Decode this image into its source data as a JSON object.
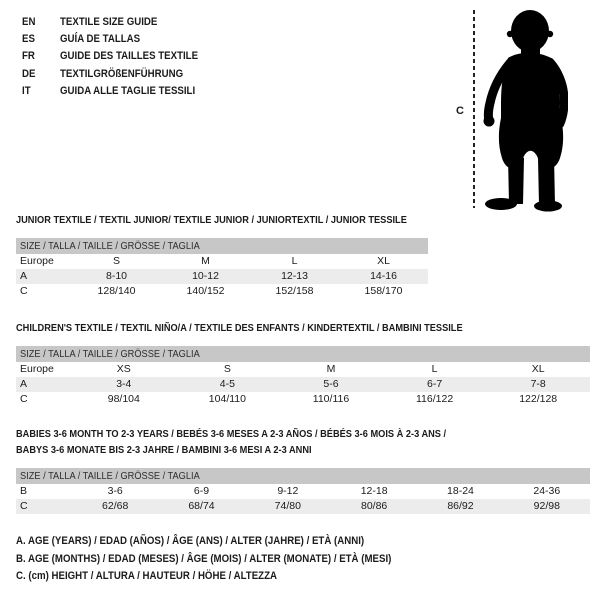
{
  "page": {
    "background": "#ffffff",
    "text_color": "#1b1b1b",
    "header_bar_color": "#c7c7c7",
    "alt_row_color": "#ececec"
  },
  "languages": [
    {
      "code": "EN",
      "title": "TEXTILE SIZE GUIDE"
    },
    {
      "code": "ES",
      "title": "GUÍA DE TALLAS"
    },
    {
      "code": "FR",
      "title": "GUIDE DES TAILLES TEXTILE"
    },
    {
      "code": "DE",
      "title": "TEXTILGRÖßENFÜHRUNG"
    },
    {
      "code": "IT",
      "title": "GUIDA ALLE TAGLIE TESSILI"
    }
  ],
  "figure": {
    "icon": "baby-toddler-silhouette",
    "measure_label": "C"
  },
  "sections": [
    {
      "title_lines": [
        "JUNIOR TEXTILE / TEXTIL JUNIOR/ TEXTILE JUNIOR / JUNIORTEXTIL / JUNIOR TESSILE"
      ],
      "size_header": "SIZE / TALLA / TAILLE / GRÖSSE / TAGLIA",
      "rows": [
        {
          "label": "Europe",
          "cells": [
            "S",
            "M",
            "L",
            "XL"
          ]
        },
        {
          "label": "A",
          "cells": [
            "8-10",
            "10-12",
            "12-13",
            "14-16"
          ]
        },
        {
          "label": "C",
          "cells": [
            "128/140",
            "140/152",
            "152/158",
            "158/170"
          ]
        }
      ]
    },
    {
      "title_lines": [
        "CHILDREN'S TEXTILE / TEXTIL NIÑO/A / TEXTILE DES ENFANTS / KINDERTEXTIL / BAMBINI TESSILE"
      ],
      "size_header": "SIZE / TALLA / TAILLE / GRÖSSE / TAGLIA",
      "rows": [
        {
          "label": "Europe",
          "cells": [
            "XS",
            "S",
            "M",
            "L",
            "XL"
          ]
        },
        {
          "label": "A",
          "cells": [
            "3-4",
            "4-5",
            "5-6",
            "6-7",
            "7-8"
          ]
        },
        {
          "label": "C",
          "cells": [
            "98/104",
            "104/110",
            "110/116",
            "116/122",
            "122/128"
          ]
        }
      ]
    },
    {
      "title_lines": [
        "BABIES 3-6 MONTH TO 2-3 YEARS / BEBÉS 3-6 MESES A 2-3 AÑOS / BÉBÉS 3-6 MOIS À 2-3 ANS /",
        "BABYS 3-6 MONATE BIS 2-3 JAHRE / BAMBINI 3-6 MESI A 2-3 ANNI"
      ],
      "size_header": "SIZE / TALLA / TAILLE / GRÖSSE / TAGLIA",
      "rows": [
        {
          "label": "B",
          "cells": [
            "3-6",
            "6-9",
            "9-12",
            "12-18",
            "18-24",
            "24-36"
          ]
        },
        {
          "label": "C",
          "cells": [
            "62/68",
            "68/74",
            "74/80",
            "80/86",
            "86/92",
            "92/98"
          ]
        }
      ]
    }
  ],
  "footnotes": [
    "A. AGE (YEARS) / EDAD (AÑOS) / ÂGE (ANS) / ALTER (JAHRE) / ETÀ (ANNI)",
    "B. AGE (MONTHS) / EDAD (MESES) / ÂGE (MOIS) / ALTER (MONATE) / ETÀ (MESI)",
    "C. (cm) HEIGHT / ALTURA / HAUTEUR / HÖHE / ALTEZZA"
  ]
}
